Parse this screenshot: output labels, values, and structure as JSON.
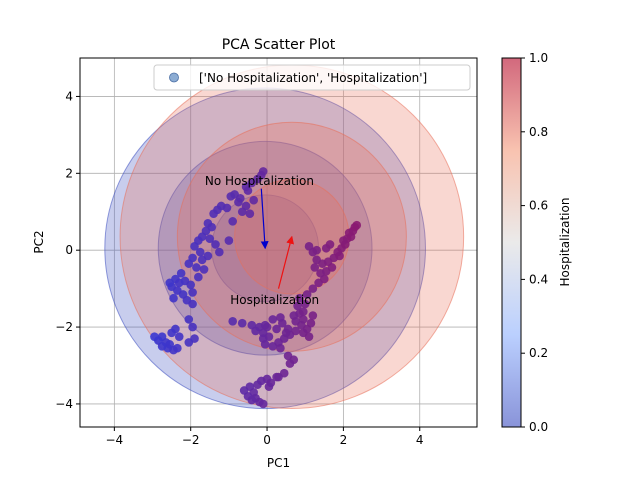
{
  "chart_data": {
    "type": "scatter",
    "title": "PCA Scatter Plot",
    "xlabel": "PC1",
    "ylabel": "PC2",
    "xlim": [
      -4.9,
      5.5
    ],
    "ylim": [
      -4.6,
      5.0
    ],
    "xticks": [
      -4,
      -2,
      0,
      2,
      4
    ],
    "yticks": [
      -4,
      -2,
      0,
      2,
      4
    ],
    "grid": true,
    "legend": {
      "position": "top-right",
      "label": "['No Hospitalization', 'Hospitalization']"
    },
    "colorbar": {
      "label": "Hospitalization",
      "range": [
        0.0,
        1.0
      ],
      "ticks": [
        0.0,
        0.2,
        0.4,
        0.6,
        0.8,
        1.0
      ],
      "colormap": "coolwarm"
    },
    "circles": [
      {
        "name": "No Hospitalization",
        "cx": -0.05,
        "cy": 0.05,
        "radii": [
          1.4,
          2.8,
          4.2
        ],
        "color": "#3b4cc0"
      },
      {
        "name": "Hospitalization",
        "cx": 0.65,
        "cy": 0.35,
        "radii": [
          1.5,
          3.0,
          4.5
        ],
        "color": "#e8705a"
      }
    ],
    "arrows": [
      {
        "label": "No Hospitalization",
        "from": [
          -0.15,
          1.6
        ],
        "to": [
          -0.05,
          0.05
        ],
        "color": "#0000cc",
        "label_pos": [
          -0.2,
          1.8
        ]
      },
      {
        "label": "Hospitalization",
        "from": [
          0.3,
          -1.0
        ],
        "to": [
          0.65,
          0.35
        ],
        "color": "#ee1111",
        "label_pos": [
          0.2,
          -1.3
        ]
      }
    ],
    "points": [
      [
        -0.1,
        2.05
      ],
      [
        -0.15,
        1.95
      ],
      [
        -0.25,
        1.85
      ],
      [
        -0.4,
        1.75
      ],
      [
        -0.55,
        1.65
      ],
      [
        -0.5,
        1.55
      ],
      [
        -0.7,
        1.35
      ],
      [
        -0.85,
        1.45
      ],
      [
        -0.95,
        1.4
      ],
      [
        -0.75,
        1.25
      ],
      [
        -1.05,
        1.1
      ],
      [
        -1.2,
        1.15
      ],
      [
        -1.3,
        1.05
      ],
      [
        -1.4,
        0.95
      ],
      [
        -1.55,
        0.7
      ],
      [
        -1.45,
        0.6
      ],
      [
        -1.6,
        0.5
      ],
      [
        -1.7,
        0.35
      ],
      [
        -1.5,
        0.3
      ],
      [
        -1.35,
        0.15
      ],
      [
        -1.8,
        0.25
      ],
      [
        -1.9,
        0.1
      ],
      [
        -1.75,
        -0.05
      ],
      [
        -1.95,
        -0.2
      ],
      [
        -2.05,
        -0.35
      ],
      [
        -1.85,
        -0.45
      ],
      [
        -1.65,
        -0.5
      ],
      [
        -2.25,
        -0.6
      ],
      [
        -2.4,
        -0.75
      ],
      [
        -2.15,
        -0.8
      ],
      [
        -2.0,
        -0.9
      ],
      [
        -2.5,
        -0.95
      ],
      [
        -2.35,
        -1.05
      ],
      [
        -2.2,
        -1.15
      ],
      [
        -1.95,
        -1.1
      ],
      [
        -2.45,
        -1.25
      ],
      [
        -2.1,
        -1.3
      ],
      [
        -1.95,
        -1.4
      ],
      [
        -2.3,
        -0.85
      ],
      [
        -2.55,
        -0.85
      ],
      [
        -1.8,
        -0.7
      ],
      [
        -1.7,
        -0.25
      ],
      [
        -1.55,
        -0.15
      ],
      [
        -1.25,
        -0.05
      ],
      [
        -1.0,
        0.25
      ],
      [
        -0.9,
        0.75
      ],
      [
        -0.65,
        1.0
      ],
      [
        -0.55,
        1.15
      ],
      [
        -0.35,
        1.3
      ],
      [
        -0.45,
        0.95
      ],
      [
        -2.05,
        -1.8
      ],
      [
        -1.95,
        -2.0
      ],
      [
        -2.4,
        -2.05
      ],
      [
        -2.5,
        -2.15
      ],
      [
        -2.3,
        -2.25
      ],
      [
        -1.9,
        -2.3
      ],
      [
        -2.05,
        -2.4
      ],
      [
        -2.55,
        -2.45
      ],
      [
        -2.75,
        -2.25
      ],
      [
        -2.85,
        -2.35
      ],
      [
        -2.65,
        -2.4
      ],
      [
        -2.6,
        -2.55
      ],
      [
        -2.45,
        -2.6
      ],
      [
        -2.75,
        -2.5
      ],
      [
        -2.95,
        -2.25
      ],
      [
        -2.35,
        -2.55
      ],
      [
        -0.9,
        -1.85
      ],
      [
        -0.65,
        -1.9
      ],
      [
        -0.4,
        -1.95
      ],
      [
        -0.2,
        -2.0
      ],
      [
        -0.1,
        -2.15
      ],
      [
        0.05,
        -2.25
      ],
      [
        -0.1,
        -2.3
      ],
      [
        -0.05,
        -2.45
      ],
      [
        0.15,
        -2.5
      ],
      [
        0.3,
        -2.4
      ],
      [
        0.45,
        -2.3
      ],
      [
        0.6,
        -2.2
      ],
      [
        0.75,
        -2.1
      ],
      [
        0.5,
        -2.15
      ],
      [
        0.35,
        -2.55
      ],
      [
        0.55,
        -2.75
      ],
      [
        0.7,
        -2.85
      ],
      [
        0.6,
        -2.95
      ],
      [
        0.45,
        -3.2
      ],
      [
        0.25,
        -3.3
      ],
      [
        0.0,
        -3.35
      ],
      [
        -0.15,
        -3.4
      ],
      [
        -0.25,
        -3.5
      ],
      [
        -0.45,
        -3.55
      ],
      [
        -0.35,
        -3.7
      ],
      [
        -0.5,
        -3.8
      ],
      [
        -0.3,
        -3.85
      ],
      [
        -0.2,
        -3.95
      ],
      [
        -0.1,
        -4.0
      ],
      [
        0.1,
        -3.45
      ],
      [
        0.3,
        -3.3
      ],
      [
        0.05,
        -3.55
      ],
      [
        -0.6,
        -3.65
      ],
      [
        -0.4,
        -3.9
      ],
      [
        0.8,
        -1.45
      ],
      [
        0.85,
        -1.65
      ],
      [
        0.95,
        -1.8
      ],
      [
        0.9,
        -1.95
      ],
      [
        1.05,
        -2.05
      ],
      [
        1.15,
        -1.9
      ],
      [
        1.2,
        -1.7
      ],
      [
        0.75,
        -1.85
      ],
      [
        0.55,
        -2.05
      ],
      [
        0.95,
        -1.6
      ],
      [
        1.05,
        -1.15
      ],
      [
        1.2,
        -1.0
      ],
      [
        1.35,
        -0.85
      ],
      [
        1.5,
        -0.75
      ],
      [
        1.55,
        -0.55
      ],
      [
        1.45,
        -0.35
      ],
      [
        1.3,
        -0.25
      ],
      [
        1.2,
        -0.05
      ],
      [
        1.1,
        0.1
      ],
      [
        1.25,
        -0.45
      ],
      [
        1.6,
        -0.3
      ],
      [
        1.75,
        -0.2
      ],
      [
        1.85,
        -0.05
      ],
      [
        1.95,
        0.05
      ],
      [
        2.05,
        0.15
      ],
      [
        2.1,
        0.3
      ],
      [
        2.2,
        0.35
      ],
      [
        2.0,
        0.25
      ],
      [
        2.25,
        0.5
      ],
      [
        2.3,
        0.6
      ],
      [
        2.35,
        0.65
      ],
      [
        2.15,
        0.45
      ],
      [
        1.9,
        -0.15
      ],
      [
        1.7,
        -0.45
      ],
      [
        1.4,
        -0.6
      ],
      [
        1.55,
        0.05
      ],
      [
        1.65,
        0.15
      ],
      [
        1.3,
        0.0
      ],
      [
        1.0,
        -1.4
      ],
      [
        0.85,
        -1.25
      ],
      [
        0.4,
        -1.9
      ],
      [
        0.25,
        -2.05
      ],
      [
        0.7,
        -1.7
      ],
      [
        0.95,
        -2.15
      ],
      [
        1.1,
        -2.25
      ],
      [
        -0.05,
        -1.95
      ],
      [
        0.15,
        -1.8
      ],
      [
        0.35,
        -1.75
      ],
      [
        -0.3,
        -2.1
      ],
      [
        0.0,
        -2.0
      ]
    ]
  }
}
